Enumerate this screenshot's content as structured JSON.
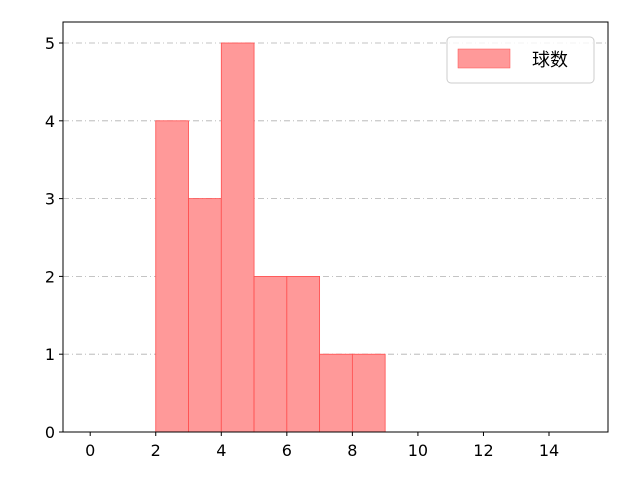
{
  "chart_data": {
    "type": "bar",
    "histogram": true,
    "bins": [
      [
        2,
        3
      ],
      [
        3,
        4
      ],
      [
        4,
        5
      ],
      [
        5,
        6
      ],
      [
        6,
        7
      ],
      [
        7,
        8
      ],
      [
        8,
        9
      ]
    ],
    "series": [
      {
        "name": "球数",
        "values": [
          4,
          3,
          5,
          2,
          2,
          1,
          1
        ],
        "color": "#ff9999",
        "edge_color": "#ff4d4d"
      }
    ],
    "xlim": [
      -0.83,
      15.8
    ],
    "ylim": [
      0,
      5.27
    ],
    "xticks": [
      0,
      2,
      4,
      6,
      8,
      10,
      12,
      14
    ],
    "yticks": [
      0,
      1,
      2,
      3,
      4,
      5
    ],
    "grid": "horizontal dash-dot",
    "legend": "top-right",
    "title": "",
    "xlabel": "",
    "ylabel": ""
  }
}
